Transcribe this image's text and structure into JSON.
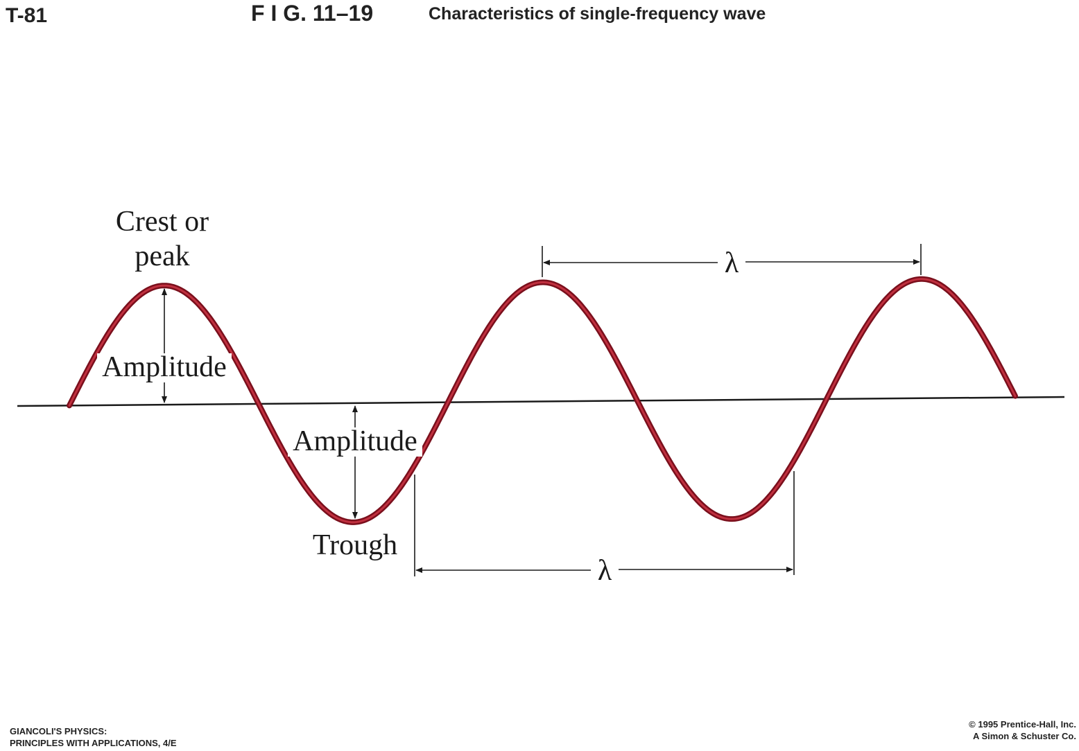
{
  "header": {
    "plate": "T-81",
    "figure": "F I G. 11–19",
    "caption": "Characteristics of single-frequency wave"
  },
  "labels": {
    "crest": [
      "Crest or",
      "peak"
    ],
    "amplitude": [
      "Amplitude",
      "Amplitude"
    ],
    "trough": "Trough",
    "wavelength": [
      "λ",
      "λ"
    ]
  },
  "footer": {
    "left": [
      "GIANCOLI'S PHYSICS:",
      "PRINCIPLES WITH APPLICATIONS, 4/E"
    ],
    "right": [
      "© 1995 Prentice-Hall, Inc.",
      "A Simon & Schuster Co."
    ]
  }
}
